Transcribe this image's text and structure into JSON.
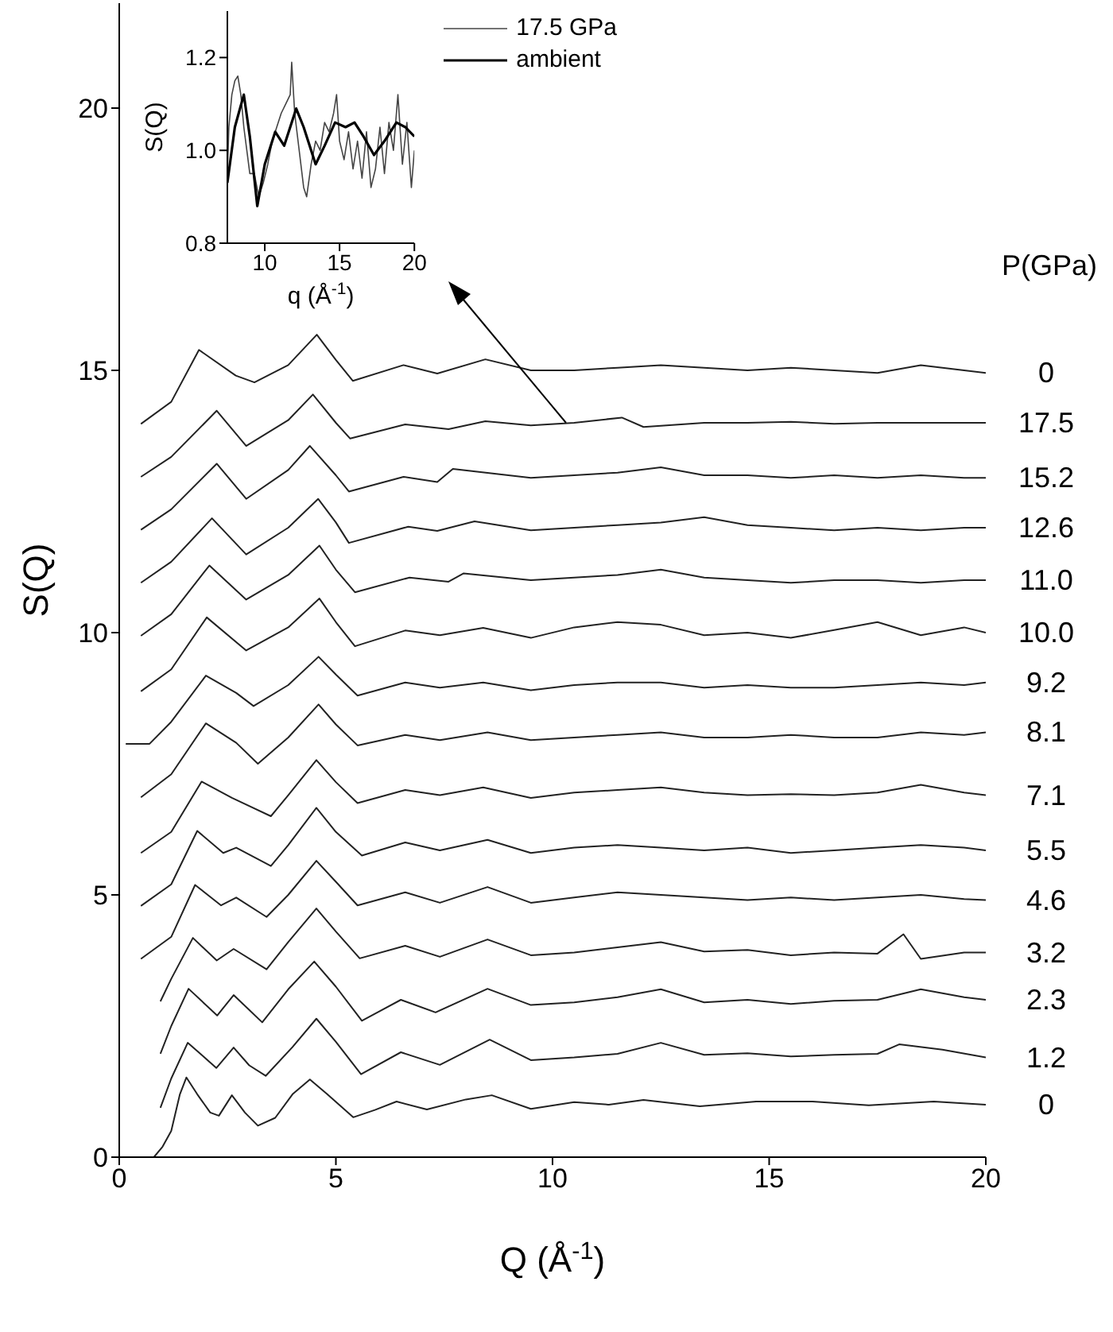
{
  "chart_data": [
    {
      "type": "line",
      "xlabel": "Q (Å$^{-1}$)",
      "ylabel": "S(Q)",
      "legend_title": "P(GPa)",
      "marker": "none",
      "xlim": [
        0,
        20
      ],
      "xticks": [
        0,
        5,
        10,
        15,
        20
      ],
      "ylim": [
        0,
        22
      ],
      "yticks": [
        0,
        5,
        10,
        15,
        20
      ],
      "series": [
        {
          "name": "0",
          "color": "#222222",
          "x": [
            0.5,
            1.2,
            1.84,
            2.69,
            3.12,
            3.9,
            4.56,
            5.0,
            5.39,
            6.56,
            7.34,
            8.45,
            9.5,
            10.5,
            11.5,
            12.5,
            13.5,
            14.5,
            15.5,
            16.5,
            17.5,
            18.5,
            19.5,
            20
          ],
          "values": [
            13.98,
            14.4,
            15.39,
            14.9,
            14.77,
            15.1,
            15.68,
            15.2,
            14.8,
            15.1,
            14.94,
            15.21,
            15.0,
            15.0,
            15.05,
            15.1,
            15.05,
            15.0,
            15.05,
            15.0,
            14.95,
            15.1,
            15.0,
            14.95
          ]
        },
        {
          "name": "17.5",
          "color": "#222222",
          "x": [
            0.5,
            1.2,
            2.25,
            2.93,
            3.9,
            4.47,
            5.0,
            5.33,
            6.6,
            7.6,
            8.45,
            9.5,
            10.5,
            11.6,
            12.1,
            13.5,
            14.5,
            15.5,
            16.5,
            17.5,
            18.5,
            19.5,
            20
          ],
          "values": [
            12.97,
            13.35,
            14.23,
            13.56,
            14.05,
            14.54,
            14.0,
            13.7,
            13.97,
            13.88,
            14.03,
            13.95,
            14.0,
            14.1,
            13.92,
            14.0,
            14.0,
            14.02,
            13.98,
            14.0,
            14.0,
            14.0,
            14.0
          ]
        },
        {
          "name": "15.2",
          "color": "#222222",
          "x": [
            0.5,
            1.2,
            2.25,
            2.93,
            3.9,
            4.4,
            5.0,
            5.3,
            6.56,
            7.34,
            7.7,
            9.5,
            10.5,
            11.5,
            12.5,
            13.5,
            14.5,
            15.5,
            16.5,
            17.5,
            18.5,
            19.5,
            20
          ],
          "values": [
            11.96,
            12.35,
            13.22,
            12.55,
            13.1,
            13.56,
            13.0,
            12.69,
            12.97,
            12.87,
            13.12,
            12.95,
            13.0,
            13.05,
            13.15,
            13.0,
            13.0,
            12.95,
            13.0,
            12.95,
            13.0,
            12.95,
            12.95
          ]
        },
        {
          "name": "12.6",
          "color": "#222222",
          "x": [
            0.5,
            1.2,
            2.14,
            2.93,
            3.9,
            4.59,
            5.0,
            5.3,
            6.67,
            7.34,
            8.2,
            9.5,
            10.5,
            11.5,
            12.5,
            13.5,
            14.5,
            15.5,
            16.5,
            17.5,
            18.5,
            19.5,
            20
          ],
          "values": [
            10.95,
            11.35,
            12.18,
            11.49,
            12.0,
            12.55,
            12.1,
            11.71,
            12.02,
            11.94,
            12.12,
            11.95,
            12.0,
            12.05,
            12.1,
            12.2,
            12.05,
            12.0,
            11.95,
            12.0,
            11.95,
            12.0,
            12.0
          ]
        },
        {
          "name": "11.0",
          "color": "#222222",
          "x": [
            0.5,
            1.2,
            2.08,
            2.93,
            3.9,
            4.62,
            5.0,
            5.44,
            6.7,
            7.6,
            7.95,
            9.5,
            10.5,
            11.5,
            12.5,
            13.5,
            14.5,
            15.5,
            16.5,
            17.5,
            18.5,
            19.5,
            20
          ],
          "values": [
            9.94,
            10.35,
            11.28,
            10.63,
            11.1,
            11.66,
            11.2,
            10.77,
            11.05,
            10.97,
            11.13,
            11.0,
            11.05,
            11.1,
            11.2,
            11.05,
            11.0,
            10.95,
            11.0,
            11.0,
            10.95,
            11.0,
            11.0
          ]
        },
        {
          "name": "10.0",
          "color": "#222222",
          "x": [
            0.5,
            1.2,
            2.02,
            2.93,
            3.9,
            4.62,
            5.0,
            5.44,
            6.6,
            7.4,
            8.4,
            9.5,
            10.5,
            11.5,
            12.5,
            13.5,
            14.5,
            15.5,
            16.5,
            17.5,
            18.5,
            19.5,
            20
          ],
          "values": [
            8.88,
            9.3,
            10.29,
            9.66,
            10.1,
            10.65,
            10.2,
            9.74,
            10.04,
            9.95,
            10.09,
            9.9,
            10.1,
            10.2,
            10.15,
            9.95,
            10.0,
            9.9,
            10.05,
            10.2,
            9.95,
            10.1,
            10.0
          ]
        },
        {
          "name": "9.2",
          "color": "#222222",
          "x": [
            0.15,
            0.7,
            1.2,
            2.0,
            2.7,
            3.1,
            3.9,
            4.6,
            5.0,
            5.5,
            6.6,
            7.4,
            8.4,
            9.5,
            10.5,
            11.5,
            12.5,
            13.5,
            14.5,
            15.5,
            16.5,
            17.5,
            18.5,
            19.5,
            20
          ],
          "values": [
            7.88,
            7.88,
            8.3,
            9.18,
            8.85,
            8.6,
            9.0,
            9.54,
            9.2,
            8.8,
            9.05,
            8.95,
            9.05,
            8.9,
            9.0,
            9.05,
            9.05,
            8.95,
            9.0,
            8.95,
            8.95,
            9.0,
            9.05,
            9.0,
            9.05
          ]
        },
        {
          "name": "8.1",
          "color": "#222222",
          "x": [
            0.5,
            1.2,
            2.0,
            2.7,
            3.2,
            3.9,
            4.6,
            5.0,
            5.5,
            6.6,
            7.4,
            8.5,
            9.5,
            10.5,
            11.5,
            12.5,
            13.5,
            14.5,
            15.5,
            16.5,
            17.5,
            18.5,
            19.5,
            20
          ],
          "values": [
            6.86,
            7.3,
            8.27,
            7.9,
            7.5,
            8.0,
            8.63,
            8.25,
            7.85,
            8.05,
            7.95,
            8.1,
            7.95,
            8.0,
            8.05,
            8.1,
            8.0,
            8.0,
            8.05,
            8.0,
            8.0,
            8.1,
            8.05,
            8.1
          ]
        },
        {
          "name": "7.1",
          "color": "#222222",
          "x": [
            0.5,
            1.2,
            1.9,
            2.6,
            3.5,
            3.9,
            4.55,
            5.0,
            5.5,
            6.6,
            7.4,
            8.4,
            9.5,
            10.5,
            11.5,
            12.5,
            13.5,
            14.5,
            15.5,
            16.5,
            17.5,
            18.5,
            19.5,
            20
          ],
          "values": [
            5.8,
            6.2,
            7.16,
            6.85,
            6.5,
            6.9,
            7.57,
            7.15,
            6.75,
            7.0,
            6.9,
            7.05,
            6.85,
            6.95,
            7.0,
            7.05,
            6.95,
            6.9,
            6.92,
            6.9,
            6.95,
            7.1,
            6.95,
            6.9
          ]
        },
        {
          "name": "5.5",
          "color": "#222222",
          "x": [
            0.5,
            1.2,
            1.8,
            2.4,
            2.7,
            3.5,
            3.9,
            4.55,
            5.0,
            5.6,
            6.6,
            7.4,
            8.5,
            9.5,
            10.5,
            11.5,
            12.5,
            13.5,
            14.5,
            15.5,
            16.5,
            17.5,
            18.5,
            19.5,
            20
          ],
          "values": [
            4.79,
            5.2,
            6.22,
            5.8,
            5.9,
            5.55,
            5.95,
            6.66,
            6.2,
            5.75,
            6.0,
            5.85,
            6.05,
            5.8,
            5.9,
            5.95,
            5.9,
            5.85,
            5.9,
            5.8,
            5.85,
            5.9,
            5.95,
            5.9,
            5.85
          ]
        },
        {
          "name": "4.6",
          "color": "#222222",
          "x": [
            0.5,
            1.2,
            1.75,
            2.35,
            2.7,
            3.4,
            3.9,
            4.55,
            5.0,
            5.5,
            6.6,
            7.4,
            8.5,
            9.5,
            10.5,
            11.5,
            12.5,
            13.5,
            14.5,
            15.5,
            16.5,
            17.5,
            18.5,
            19.5,
            20
          ],
          "values": [
            3.78,
            4.2,
            5.19,
            4.8,
            4.95,
            4.58,
            5.0,
            5.65,
            5.25,
            4.8,
            5.05,
            4.85,
            5.15,
            4.85,
            4.95,
            5.05,
            5.0,
            4.95,
            4.9,
            4.95,
            4.9,
            4.95,
            5.0,
            4.92,
            4.9
          ]
        },
        {
          "name": "3.2",
          "color": "#222222",
          "x": [
            0.95,
            1.2,
            1.7,
            2.25,
            2.64,
            3.4,
            3.9,
            4.55,
            5.0,
            5.55,
            6.6,
            7.4,
            8.5,
            9.5,
            10.5,
            11.5,
            12.5,
            13.5,
            14.5,
            15.5,
            16.5,
            17.5,
            18.1,
            18.5,
            19.5,
            20
          ],
          "values": [
            2.97,
            3.4,
            4.18,
            3.75,
            3.97,
            3.58,
            4.1,
            4.74,
            4.3,
            3.79,
            4.03,
            3.82,
            4.15,
            3.85,
            3.9,
            4.0,
            4.1,
            3.92,
            3.95,
            3.85,
            3.9,
            3.88,
            4.25,
            3.78,
            3.9,
            3.9
          ]
        },
        {
          "name": "2.3",
          "color": "#222222",
          "x": [
            0.95,
            1.2,
            1.6,
            2.26,
            2.64,
            3.3,
            3.9,
            4.5,
            5.0,
            5.6,
            6.5,
            7.3,
            8.5,
            9.5,
            10.5,
            11.5,
            12.5,
            13.5,
            14.5,
            15.5,
            16.5,
            17.5,
            18.5,
            19.5,
            20
          ],
          "values": [
            1.97,
            2.5,
            3.21,
            2.7,
            3.09,
            2.57,
            3.2,
            3.73,
            3.25,
            2.6,
            3.0,
            2.76,
            3.21,
            2.9,
            2.95,
            3.05,
            3.2,
            2.95,
            3.0,
            2.92,
            2.98,
            3.0,
            3.2,
            3.05,
            3.0
          ]
        },
        {
          "name": "1.2",
          "color": "#222222",
          "x": [
            0.95,
            1.2,
            1.58,
            1.9,
            2.24,
            2.64,
            3.0,
            3.38,
            4.0,
            4.55,
            5.0,
            5.58,
            6.5,
            7.4,
            8.55,
            9.5,
            10.5,
            11.5,
            12.5,
            13.5,
            14.5,
            15.5,
            16.5,
            17.5,
            18,
            19,
            20
          ],
          "values": [
            0.94,
            1.5,
            2.18,
            1.95,
            1.7,
            2.09,
            1.75,
            1.55,
            2.1,
            2.64,
            2.2,
            1.58,
            2.0,
            1.76,
            2.24,
            1.85,
            1.9,
            1.97,
            2.18,
            1.95,
            1.98,
            1.92,
            1.95,
            1.97,
            2.15,
            2.05,
            1.9
          ]
        },
        {
          "name": "0",
          "color": "#222222",
          "x": [
            0.8,
            1.0,
            1.2,
            1.4,
            1.55,
            1.8,
            2.1,
            2.3,
            2.6,
            2.9,
            3.2,
            3.6,
            4.0,
            4.4,
            4.8,
            5.4,
            5.9,
            6.4,
            7.1,
            8.0,
            8.6,
            9.5,
            10.5,
            11.3,
            12.1,
            13.4,
            14.7,
            16,
            17.3,
            18.8,
            20
          ],
          "values": [
            0,
            0.2,
            0.5,
            1.2,
            1.52,
            1.2,
            0.85,
            0.79,
            1.18,
            0.85,
            0.6,
            0.75,
            1.2,
            1.48,
            1.2,
            0.76,
            0.9,
            1.06,
            0.91,
            1.1,
            1.18,
            0.92,
            1.05,
            1.0,
            1.09,
            0.97,
            1.06,
            1.06,
            0.99,
            1.06,
            1.0
          ]
        }
      ]
    },
    {
      "type": "line",
      "xlabel": "q (Å$^{-1}$)",
      "ylabel": "S(Q)",
      "legend": "top right",
      "marker": "none",
      "xlim": [
        7.5,
        20
      ],
      "xticks": [
        10,
        15,
        20
      ],
      "ylim": [
        0.8,
        1.3
      ],
      "yticks": [
        0.8,
        {
          "value": 1.0,
          "label": "1.0"
        },
        1.2
      ],
      "series": [
        {
          "name": "17.5 GPa",
          "color": "#444444",
          "x": [
            7.5,
            7.6,
            7.8,
            8.0,
            8.2,
            8.4,
            8.6,
            8.8,
            9.0,
            9.3,
            9.6,
            9.9,
            10.2,
            10.5,
            10.8,
            11.1,
            11.4,
            11.7,
            11.8,
            12.0,
            12.3,
            12.6,
            12.8,
            13.1,
            13.4,
            13.7,
            14.0,
            14.3,
            14.6,
            14.8,
            15.0,
            15.3,
            15.6,
            15.9,
            16.2,
            16.5,
            16.8,
            17.1,
            17.4,
            17.7,
            18.0,
            18.3,
            18.6,
            18.9,
            19.2,
            19.5,
            19.8,
            20
          ],
          "values": [
            0.95,
            1.05,
            1.12,
            1.15,
            1.16,
            1.12,
            1.05,
            1.0,
            0.95,
            0.95,
            0.9,
            0.93,
            0.97,
            1.02,
            1.05,
            1.08,
            1.1,
            1.12,
            1.19,
            1.08,
            1.0,
            0.92,
            0.9,
            0.97,
            1.02,
            1.0,
            1.06,
            1.04,
            1.08,
            1.12,
            1.02,
            0.98,
            1.04,
            0.96,
            1.02,
            0.94,
            1.04,
            0.92,
            0.96,
            1.05,
            0.95,
            1.06,
            1.0,
            1.12,
            0.97,
            1.06,
            0.92,
            1.0
          ]
        },
        {
          "name": "ambient",
          "color": "#000000",
          "x": [
            7.5,
            8.0,
            8.6,
            9.0,
            9.5,
            10.0,
            10.7,
            11.3,
            12.1,
            12.6,
            13.4,
            14.0,
            14.7,
            15.4,
            16.0,
            16.6,
            17.3,
            18.0,
            18.8,
            19.4,
            20
          ],
          "values": [
            0.93,
            1.05,
            1.12,
            1.03,
            0.88,
            0.97,
            1.04,
            1.01,
            1.09,
            1.05,
            0.97,
            1.01,
            1.06,
            1.05,
            1.06,
            1.03,
            0.99,
            1.02,
            1.06,
            1.05,
            1.03
          ]
        }
      ]
    }
  ]
}
